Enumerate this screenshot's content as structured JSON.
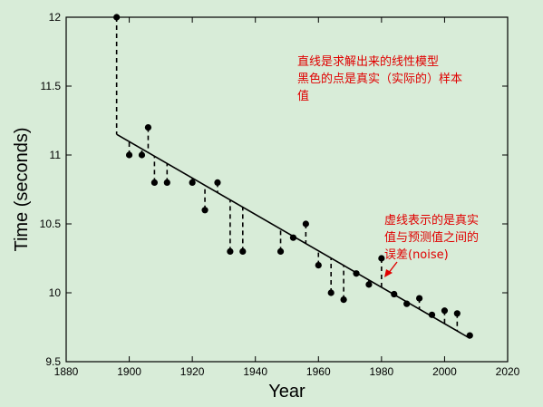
{
  "chart_data": {
    "type": "scatter",
    "xlabel": "Year",
    "ylabel": "Time (seconds)",
    "xlim": [
      1880,
      2020
    ],
    "ylim": [
      9.5,
      12
    ],
    "xticks": [
      "1880",
      "1900",
      "1920",
      "1940",
      "1960",
      "1980",
      "2000",
      "2020"
    ],
    "yticks": [
      "9.5",
      "10",
      "10.5",
      "11",
      "11.5",
      "12"
    ],
    "grid": false,
    "points": [
      {
        "x": 1896,
        "y": 12.0
      },
      {
        "x": 1900,
        "y": 11.0
      },
      {
        "x": 1904,
        "y": 11.0
      },
      {
        "x": 1906,
        "y": 11.2
      },
      {
        "x": 1908,
        "y": 10.8
      },
      {
        "x": 1912,
        "y": 10.8
      },
      {
        "x": 1920,
        "y": 10.8
      },
      {
        "x": 1924,
        "y": 10.6
      },
      {
        "x": 1928,
        "y": 10.8
      },
      {
        "x": 1932,
        "y": 10.3
      },
      {
        "x": 1936,
        "y": 10.3
      },
      {
        "x": 1948,
        "y": 10.3
      },
      {
        "x": 1952,
        "y": 10.4
      },
      {
        "x": 1956,
        "y": 10.5
      },
      {
        "x": 1960,
        "y": 10.2
      },
      {
        "x": 1964,
        "y": 10.0
      },
      {
        "x": 1968,
        "y": 9.95
      },
      {
        "x": 1972,
        "y": 10.14
      },
      {
        "x": 1976,
        "y": 10.06
      },
      {
        "x": 1980,
        "y": 10.25
      },
      {
        "x": 1984,
        "y": 9.99
      },
      {
        "x": 1988,
        "y": 9.92
      },
      {
        "x": 1992,
        "y": 9.96
      },
      {
        "x": 1996,
        "y": 9.84
      },
      {
        "x": 2000,
        "y": 9.87
      },
      {
        "x": 2004,
        "y": 9.85
      },
      {
        "x": 2008,
        "y": 9.69
      }
    ],
    "fit_line": {
      "x": [
        1896,
        2008
      ],
      "y": [
        11.15,
        9.67
      ]
    },
    "annotations": [
      {
        "lines": [
          "直线是求解出来的线性模型",
          "黑色的点是真实（实际的）样本",
          "值"
        ]
      },
      {
        "lines": [
          "虚线表示的是真实",
          "值与预测值之间的",
          "误差(noise)"
        ]
      }
    ],
    "colors": {
      "background": "#d8ecd8",
      "points": "#000000",
      "annotation": "#e00000"
    }
  }
}
